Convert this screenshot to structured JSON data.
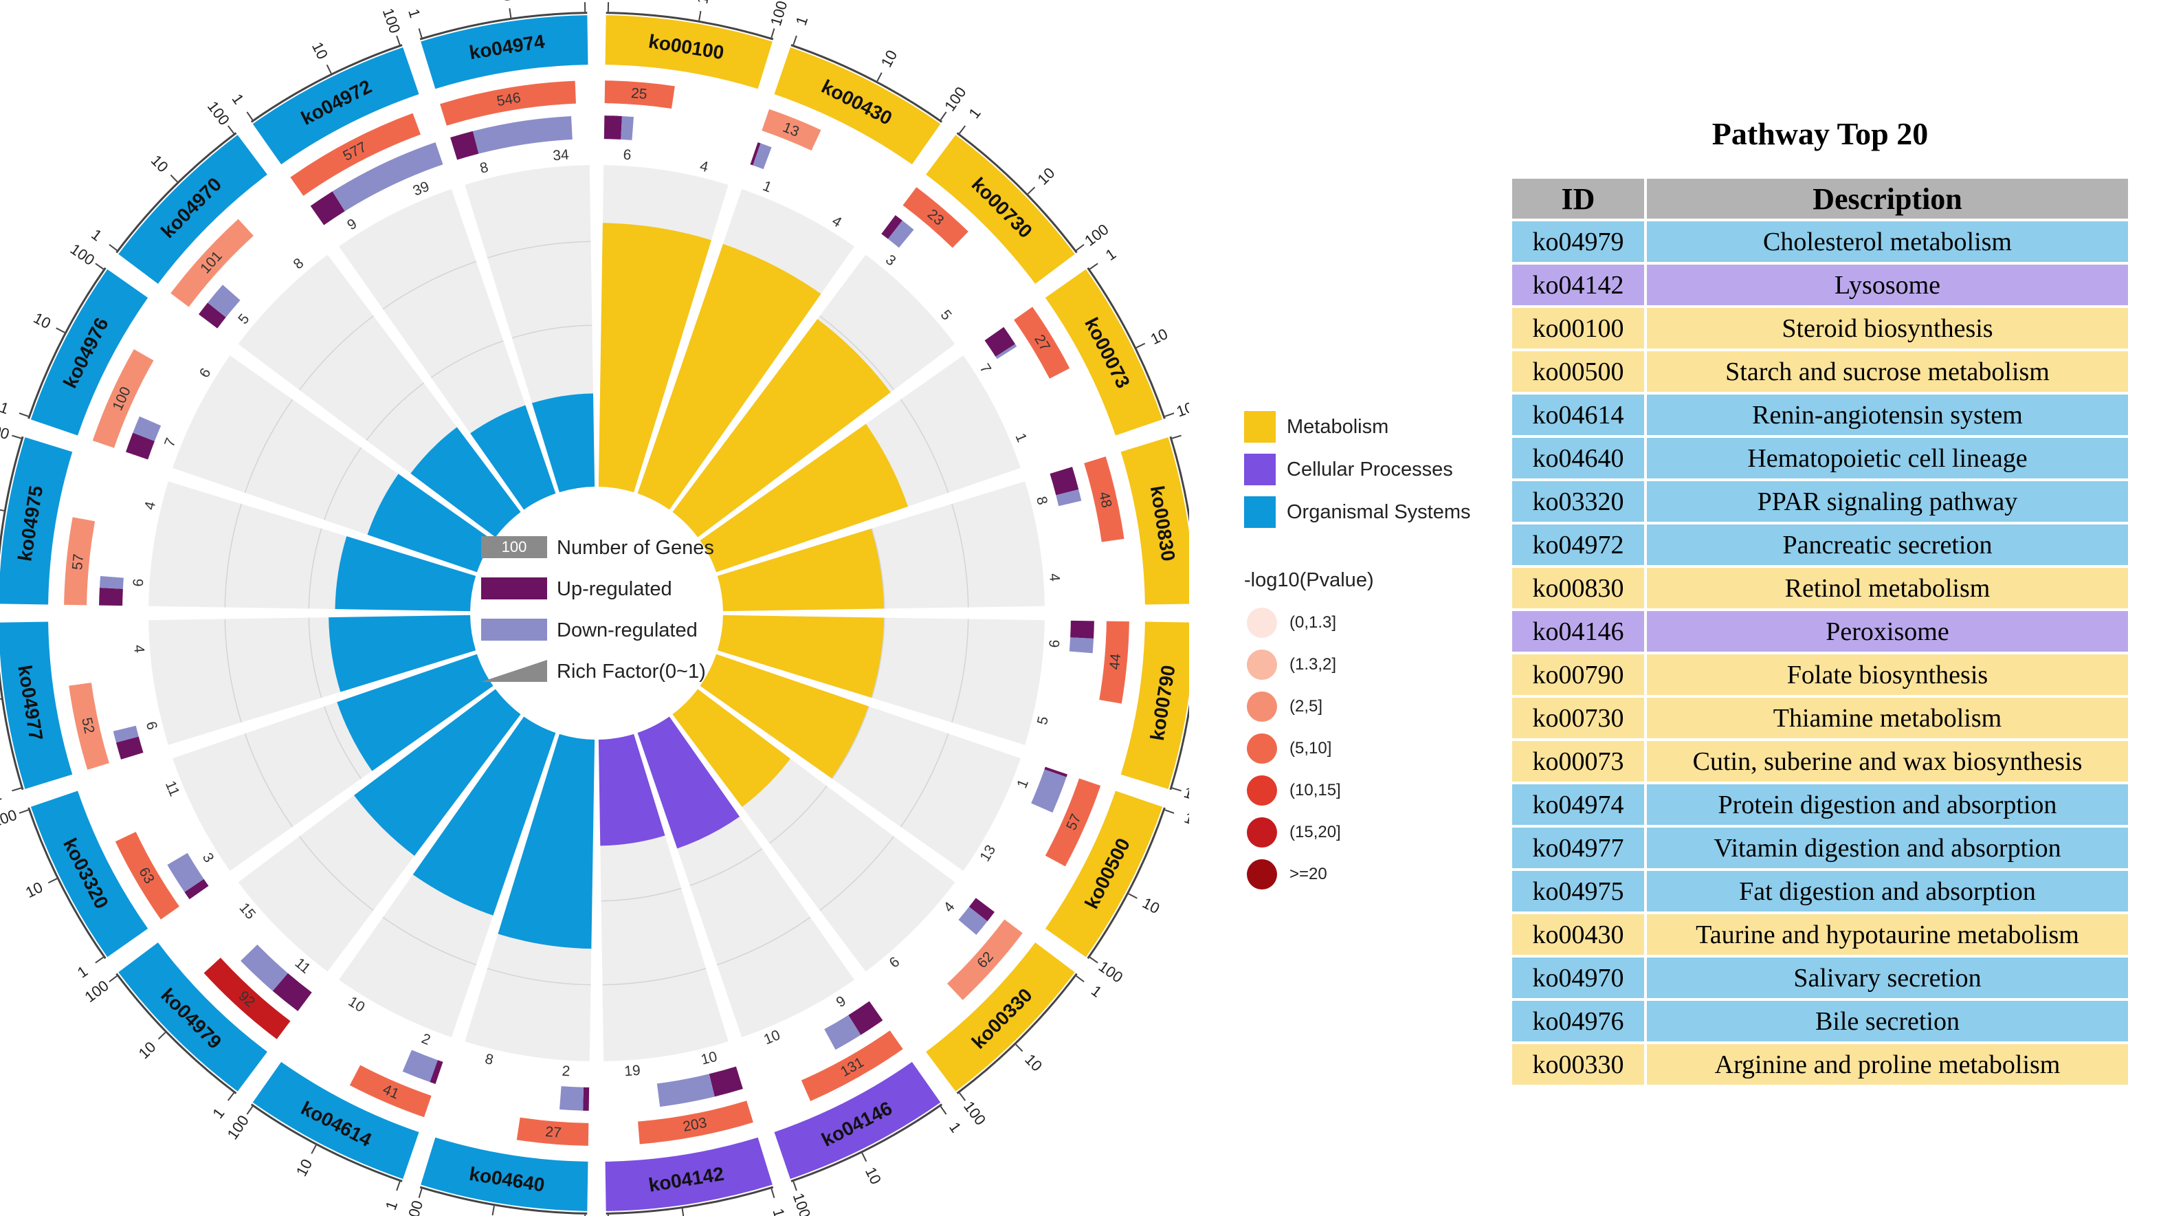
{
  "category_colors": {
    "Metabolism": "#f5c518",
    "Cellular Processes": "#7b4fe0",
    "Organismal Systems": "#0d98da"
  },
  "legend": {
    "categories": [
      {
        "name": "Metabolism",
        "color": "#f5c518"
      },
      {
        "name": "Cellular Processes",
        "color": "#7b4fe0"
      },
      {
        "name": "Organismal Systems",
        "color": "#0d98da"
      }
    ],
    "pvalue_title": "-log10(Pvalue)",
    "pvalue_bins": [
      {
        "label": "(0,1.3]",
        "color": "#fde4dd"
      },
      {
        "label": "(1.3,2]",
        "color": "#f9b9a2"
      },
      {
        "label": "(2,5]",
        "color": "#f58f73"
      },
      {
        "label": "(5,10]",
        "color": "#f0684c"
      },
      {
        "label": "(10,15]",
        "color": "#e23b2b"
      },
      {
        "label": "(15,20]",
        "color": "#c51b1f"
      },
      {
        "label": ">=20",
        "color": "#9c0a0f"
      }
    ],
    "inner": {
      "number_of_genes_sample": "100",
      "number_of_genes_label": "Number of Genes",
      "up_label": "Up-regulated",
      "down_label": "Down-regulated",
      "rich_label": "Rich Factor(0~1)"
    }
  },
  "chart_data": {
    "type": "circos",
    "description": "KEGG pathway enrichment circular plot",
    "ring_scale_ticks": [
      "1",
      "10",
      "100"
    ],
    "colors": {
      "up": "#6b1360",
      "down": "#8b8dc9",
      "background_sector": "#eeeeee"
    },
    "pathways": [
      {
        "id": "ko00100",
        "category": "Metabolism",
        "genes": 25,
        "pvalue_bin": 3,
        "up": 6,
        "down": 4,
        "rich_factor": 0.82
      },
      {
        "id": "ko00430",
        "category": "Metabolism",
        "genes": 13,
        "pvalue_bin": 2,
        "up": 1,
        "down": 4,
        "rich_factor": 0.82
      },
      {
        "id": "ko00730",
        "category": "Metabolism",
        "genes": 23,
        "pvalue_bin": 3,
        "up": 3,
        "down": 5,
        "rich_factor": 0.75
      },
      {
        "id": "ko00073",
        "category": "Metabolism",
        "genes": 27,
        "pvalue_bin": 3,
        "up": 7,
        "down": 1,
        "rich_factor": 0.63
      },
      {
        "id": "ko00830",
        "category": "Metabolism",
        "genes": 48,
        "pvalue_bin": 3,
        "up": 8,
        "down": 4,
        "rich_factor": 0.5
      },
      {
        "id": "ko00790",
        "category": "Metabolism",
        "genes": 44,
        "pvalue_bin": 3,
        "up": 6,
        "down": 5,
        "rich_factor": 0.5
      },
      {
        "id": "ko00500",
        "category": "Metabolism",
        "genes": 57,
        "pvalue_bin": 3,
        "up": 1,
        "down": 13,
        "rich_factor": 0.5
      },
      {
        "id": "ko00330",
        "category": "Metabolism",
        "genes": 62,
        "pvalue_bin": 2,
        "up": 4,
        "down": 6,
        "rich_factor": 0.36
      },
      {
        "id": "ko04146",
        "category": "Cellular Processes",
        "genes": 131,
        "pvalue_bin": 3,
        "up": 9,
        "down": 10,
        "rich_factor": 0.38
      },
      {
        "id": "ko04142",
        "category": "Cellular Processes",
        "genes": 203,
        "pvalue_bin": 3,
        "up": 10,
        "down": 19,
        "rich_factor": 0.33
      },
      {
        "id": "ko04640",
        "category": "Organismal Systems",
        "genes": 27,
        "pvalue_bin": 3,
        "up": 2,
        "down": 8,
        "rich_factor": 0.65
      },
      {
        "id": "ko04614",
        "category": "Organismal Systems",
        "genes": 41,
        "pvalue_bin": 3,
        "up": 2,
        "down": 10,
        "rich_factor": 0.6
      },
      {
        "id": "ko04979",
        "category": "Organismal Systems",
        "genes": 92,
        "pvalue_bin": 5,
        "up": 11,
        "down": 15,
        "rich_factor": 0.55
      },
      {
        "id": "ko03320",
        "category": "Organismal Systems",
        "genes": 63,
        "pvalue_bin": 3,
        "up": 3,
        "down": 11,
        "rich_factor": 0.46
      },
      {
        "id": "ko04977",
        "category": "Organismal Systems",
        "genes": 52,
        "pvalue_bin": 2,
        "up": 6,
        "down": 4,
        "rich_factor": 0.44
      },
      {
        "id": "ko04975",
        "category": "Organismal Systems",
        "genes": 57,
        "pvalue_bin": 2,
        "up": 6,
        "down": 4,
        "rich_factor": 0.42
      },
      {
        "id": "ko04976",
        "category": "Organismal Systems",
        "genes": 100,
        "pvalue_bin": 2,
        "up": 7,
        "down": 6,
        "rich_factor": 0.36
      },
      {
        "id": "ko04970",
        "category": "Organismal Systems",
        "genes": 101,
        "pvalue_bin": 2,
        "up": 5,
        "down": 8,
        "rich_factor": 0.33
      },
      {
        "id": "ko04972",
        "category": "Organismal Systems",
        "genes": 577,
        "pvalue_bin": 3,
        "up": 9,
        "down": 39,
        "rich_factor": 0.29
      },
      {
        "id": "ko04974",
        "category": "Organismal Systems",
        "genes": 546,
        "pvalue_bin": 3,
        "up": 8,
        "down": 34,
        "rich_factor": 0.29
      }
    ]
  },
  "table": {
    "title": "Pathway Top 20",
    "headers": [
      "ID",
      "Description"
    ],
    "row_colors": {
      "Metabolism": "#fbe39a",
      "Cellular Processes": "#bba8ec",
      "Organismal Systems": "#8ecdeb"
    },
    "rows": [
      {
        "id": "ko04979",
        "description": "Cholesterol metabolism",
        "category": "Organismal Systems"
      },
      {
        "id": "ko04142",
        "description": "Lysosome",
        "category": "Cellular Processes"
      },
      {
        "id": "ko00100",
        "description": "Steroid biosynthesis",
        "category": "Metabolism"
      },
      {
        "id": "ko00500",
        "description": "Starch and sucrose metabolism",
        "category": "Metabolism"
      },
      {
        "id": "ko04614",
        "description": "Renin-angiotensin system",
        "category": "Organismal Systems"
      },
      {
        "id": "ko04640",
        "description": "Hematopoietic cell lineage",
        "category": "Organismal Systems"
      },
      {
        "id": "ko03320",
        "description": "PPAR signaling pathway",
        "category": "Organismal Systems"
      },
      {
        "id": "ko04972",
        "description": "Pancreatic secretion",
        "category": "Organismal Systems"
      },
      {
        "id": "ko00830",
        "description": "Retinol metabolism",
        "category": "Metabolism"
      },
      {
        "id": "ko04146",
        "description": "Peroxisome",
        "category": "Cellular Processes"
      },
      {
        "id": "ko00790",
        "description": "Folate biosynthesis",
        "category": "Metabolism"
      },
      {
        "id": "ko00730",
        "description": "Thiamine metabolism",
        "category": "Metabolism"
      },
      {
        "id": "ko00073",
        "description": "Cutin, suberine and wax biosynthesis",
        "category": "Metabolism"
      },
      {
        "id": "ko04974",
        "description": "Protein digestion and absorption",
        "category": "Organismal Systems"
      },
      {
        "id": "ko04977",
        "description": "Vitamin digestion and absorption",
        "category": "Organismal Systems"
      },
      {
        "id": "ko04975",
        "description": "Fat digestion and absorption",
        "category": "Organismal Systems"
      },
      {
        "id": "ko00430",
        "description": "Taurine and hypotaurine metabolism",
        "category": "Metabolism"
      },
      {
        "id": "ko04970",
        "description": "Salivary secretion",
        "category": "Organismal Systems"
      },
      {
        "id": "ko04976",
        "description": "Bile secretion",
        "category": "Organismal Systems"
      },
      {
        "id": "ko00330",
        "description": "Arginine and proline metabolism",
        "category": "Metabolism"
      }
    ]
  }
}
